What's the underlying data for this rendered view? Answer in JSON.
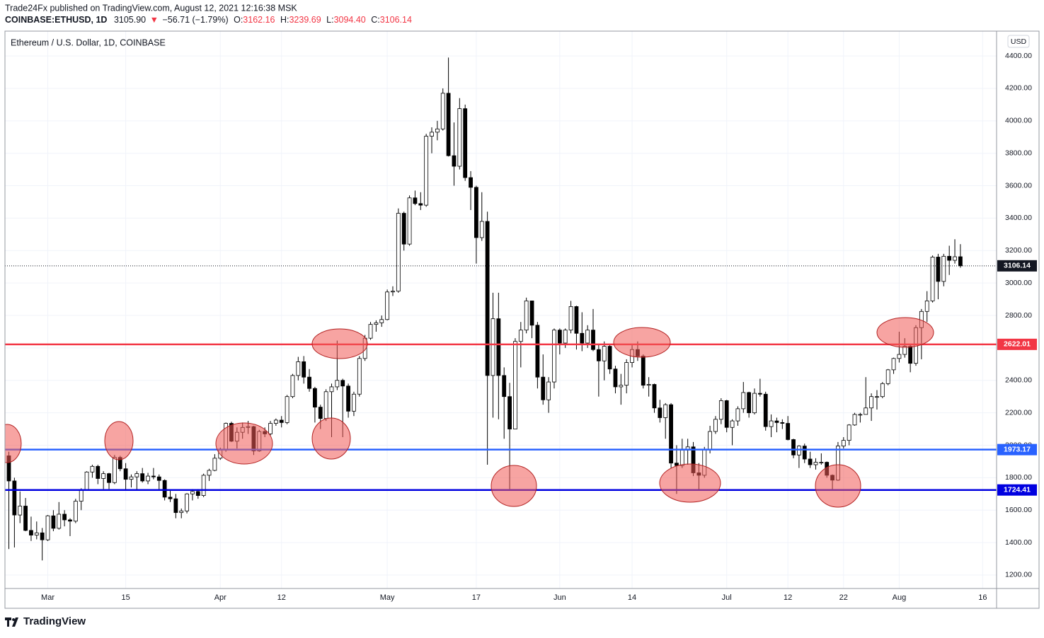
{
  "header": {
    "published": "Trade24Fx published on TradingView.com, August 12, 2021 12:16:38 MSK",
    "symbol": "COINBASE:ETHUSD, 1D",
    "price": "3105.90",
    "arrow": "▼",
    "change": "−56.71 (−1.79%)",
    "o_label": "O:",
    "open": "3162.16",
    "h_label": "H:",
    "high": "3239.69",
    "l_label": "L:",
    "low": "3094.40",
    "c_label": "C:",
    "close": "3106.14"
  },
  "footer": {
    "brand": "TradingView"
  },
  "chart_data": {
    "type": "candlestick",
    "title": "Ethereum / U.S. Dollar, 1D, COINBASE",
    "currency": "USD",
    "up_color": "#ffffff",
    "down_color": "#000000",
    "grid": true,
    "xlim": [
      -0.7,
      177.5
    ],
    "ylim": [
      1117,
      4553
    ],
    "xticks": [
      {
        "value": 7,
        "label": "Mar"
      },
      {
        "value": 21,
        "label": "15"
      },
      {
        "value": 38,
        "label": "Apr"
      },
      {
        "value": 49,
        "label": "12"
      },
      {
        "value": 68,
        "label": "May"
      },
      {
        "value": 84,
        "label": "17"
      },
      {
        "value": 99,
        "label": "Jun"
      },
      {
        "value": 112,
        "label": "14"
      },
      {
        "value": 129,
        "label": "Jul"
      },
      {
        "value": 140,
        "label": "12"
      },
      {
        "value": 150,
        "label": "22"
      },
      {
        "value": 160,
        "label": "Aug"
      },
      {
        "value": 175,
        "label": "16"
      }
    ],
    "yticks": [
      {
        "value": 1200,
        "label": "1200.00"
      },
      {
        "value": 1400,
        "label": "1400.00"
      },
      {
        "value": 1600,
        "label": "1600.00"
      },
      {
        "value": 1800,
        "label": "1800.00"
      },
      {
        "value": 2000,
        "label": "2000.00"
      },
      {
        "value": 2200,
        "label": "2200.00"
      },
      {
        "value": 2400,
        "label": "2400.00"
      },
      {
        "value": 2600,
        "label": "2600.00"
      },
      {
        "value": 2800,
        "label": "2800.00"
      },
      {
        "value": 3000,
        "label": "3000.00"
      },
      {
        "value": 3200,
        "label": "3200.00"
      },
      {
        "value": 3400,
        "label": "3400.00"
      },
      {
        "value": 3600,
        "label": "3600.00"
      },
      {
        "value": 3800,
        "label": "3800.00"
      },
      {
        "value": 4000,
        "label": "4000.00"
      },
      {
        "value": 4200,
        "label": "4200.00"
      },
      {
        "value": 4400,
        "label": "4400.00"
      }
    ],
    "hlines": [
      {
        "value": 2622.01,
        "color": "#f23645"
      },
      {
        "value": 1973.17,
        "color": "#2962ff"
      },
      {
        "value": 1724.41,
        "color": "#0000e0"
      }
    ],
    "last_price": 3106.14,
    "x": [
      0,
      1,
      2,
      3,
      4,
      5,
      6,
      7,
      8,
      9,
      10,
      11,
      12,
      13,
      14,
      15,
      16,
      17,
      18,
      19,
      20,
      21,
      22,
      23,
      24,
      25,
      26,
      27,
      28,
      29,
      30,
      31,
      32,
      33,
      34,
      35,
      36,
      37,
      38,
      39,
      40,
      41,
      42,
      43,
      44,
      45,
      46,
      47,
      48,
      49,
      50,
      51,
      52,
      53,
      54,
      55,
      56,
      57,
      58,
      59,
      60,
      61,
      62,
      63,
      64,
      65,
      66,
      67,
      68,
      69,
      70,
      71,
      72,
      73,
      74,
      75,
      76,
      77,
      78,
      79,
      80,
      81,
      82,
      83,
      84,
      85,
      86,
      87,
      88,
      89,
      90,
      91,
      92,
      93,
      94,
      95,
      96,
      97,
      98,
      99,
      100,
      101,
      102,
      103,
      104,
      105,
      106,
      107,
      108,
      109,
      110,
      111,
      112,
      113,
      114,
      115,
      116,
      117,
      118,
      119,
      120,
      121,
      122,
      123,
      124,
      125,
      126,
      127,
      128,
      129,
      130,
      131,
      132,
      133,
      134,
      135,
      136,
      137,
      138,
      139,
      140,
      141,
      142,
      143,
      144,
      145,
      146,
      147,
      148,
      149,
      150,
      151,
      152,
      153,
      154,
      155,
      156,
      157,
      158,
      159,
      160,
      161,
      162,
      163,
      164,
      165,
      166,
      167,
      168,
      169,
      170,
      171
    ],
    "ohlc": [
      [
        1935,
        1960,
        1360,
        1780
      ],
      [
        1780,
        1800,
        1370,
        1570
      ],
      [
        1570,
        1715,
        1520,
        1625
      ],
      [
        1625,
        1675,
        1470,
        1475
      ],
      [
        1475,
        1560,
        1410,
        1446
      ],
      [
        1446,
        1530,
        1420,
        1460
      ],
      [
        1460,
        1490,
        1290,
        1417
      ],
      [
        1417,
        1570,
        1410,
        1565
      ],
      [
        1565,
        1600,
        1470,
        1488
      ],
      [
        1488,
        1650,
        1480,
        1575
      ],
      [
        1575,
        1600,
        1500,
        1540
      ],
      [
        1540,
        1550,
        1440,
        1532
      ],
      [
        1532,
        1670,
        1520,
        1655
      ],
      [
        1655,
        1735,
        1600,
        1723
      ],
      [
        1723,
        1840,
        1720,
        1835
      ],
      [
        1835,
        1880,
        1800,
        1870
      ],
      [
        1870,
        1880,
        1760,
        1795
      ],
      [
        1795,
        1840,
        1730,
        1825
      ],
      [
        1825,
        1830,
        1730,
        1770
      ],
      [
        1770,
        1940,
        1760,
        1925
      ],
      [
        1925,
        1935,
        1840,
        1855
      ],
      [
        1855,
        1890,
        1720,
        1790
      ],
      [
        1790,
        1820,
        1740,
        1805
      ],
      [
        1805,
        1840,
        1720,
        1825
      ],
      [
        1825,
        1860,
        1770,
        1780
      ],
      [
        1780,
        1830,
        1760,
        1810
      ],
      [
        1810,
        1860,
        1790,
        1805
      ],
      [
        1805,
        1820,
        1720,
        1783
      ],
      [
        1783,
        1790,
        1660,
        1680
      ],
      [
        1680,
        1720,
        1650,
        1670
      ],
      [
        1670,
        1700,
        1550,
        1585
      ],
      [
        1585,
        1610,
        1550,
        1595
      ],
      [
        1595,
        1705,
        1580,
        1700
      ],
      [
        1700,
        1730,
        1660,
        1715
      ],
      [
        1715,
        1730,
        1670,
        1690
      ],
      [
        1690,
        1825,
        1680,
        1815
      ],
      [
        1815,
        1855,
        1780,
        1845
      ],
      [
        1845,
        1945,
        1840,
        1920
      ],
      [
        1920,
        1985,
        1910,
        1970
      ],
      [
        1970,
        2140,
        1960,
        2135
      ],
      [
        2135,
        2145,
        2020,
        2025
      ],
      [
        2025,
        2110,
        1980,
        2080
      ],
      [
        2080,
        2140,
        2040,
        2110
      ],
      [
        2110,
        2150,
        2070,
        2115
      ],
      [
        2115,
        2120,
        1940,
        1965
      ],
      [
        1965,
        2095,
        1960,
        2085
      ],
      [
        2085,
        2110,
        2050,
        2070
      ],
      [
        2070,
        2150,
        2060,
        2135
      ],
      [
        2135,
        2165,
        2120,
        2155
      ],
      [
        2155,
        2180,
        2110,
        2140
      ],
      [
        2140,
        2310,
        2130,
        2300
      ],
      [
        2300,
        2440,
        2290,
        2430
      ],
      [
        2430,
        2545,
        2400,
        2515
      ],
      [
        2515,
        2550,
        2380,
        2420
      ],
      [
        2420,
        2470,
        2330,
        2350
      ],
      [
        2350,
        2360,
        2140,
        2235
      ],
      [
        2235,
        2250,
        2100,
        2165
      ],
      [
        2165,
        2345,
        2150,
        2330
      ],
      [
        2330,
        2380,
        2050,
        2360
      ],
      [
        2360,
        2645,
        2340,
        2400
      ],
      [
        2400,
        2410,
        2050,
        2365
      ],
      [
        2365,
        2380,
        2170,
        2210
      ],
      [
        2210,
        2330,
        2180,
        2315
      ],
      [
        2315,
        2550,
        2300,
        2535
      ],
      [
        2535,
        2680,
        2520,
        2660
      ],
      [
        2660,
        2760,
        2650,
        2745
      ],
      [
        2745,
        2770,
        2700,
        2755
      ],
      [
        2755,
        2800,
        2730,
        2775
      ],
      [
        2775,
        2960,
        2770,
        2945
      ],
      [
        2945,
        2980,
        2920,
        2950
      ],
      [
        2950,
        3460,
        2940,
        3430
      ],
      [
        3430,
        3440,
        3200,
        3240
      ],
      [
        3240,
        3540,
        3230,
        3525
      ],
      [
        3525,
        3570,
        3480,
        3490
      ],
      [
        3490,
        3560,
        3450,
        3480
      ],
      [
        3480,
        3920,
        3470,
        3905
      ],
      [
        3905,
        3960,
        3800,
        3930
      ],
      [
        3930,
        4000,
        3880,
        3950
      ],
      [
        3950,
        4200,
        3940,
        4170
      ],
      [
        4170,
        4390,
        3780,
        3785
      ],
      [
        3785,
        3990,
        3600,
        3720
      ],
      [
        3720,
        4140,
        3700,
        4075
      ],
      [
        4075,
        4100,
        3630,
        3650
      ],
      [
        3650,
        3690,
        3450,
        3590
      ],
      [
        3590,
        3600,
        3120,
        3280
      ],
      [
        3280,
        3560,
        3260,
        3380
      ],
      [
        3380,
        3440,
        1880,
        2430
      ],
      [
        2430,
        2940,
        2170,
        2780
      ],
      [
        2780,
        2940,
        2160,
        2430
      ],
      [
        2430,
        2480,
        2040,
        2300
      ],
      [
        2300,
        2385,
        1730,
        2100
      ],
      [
        2100,
        2660,
        2100,
        2640
      ],
      [
        2640,
        2760,
        2480,
        2710
      ],
      [
        2710,
        2910,
        2690,
        2890
      ],
      [
        2890,
        2890,
        2660,
        2740
      ],
      [
        2740,
        2760,
        2350,
        2420
      ],
      [
        2420,
        2560,
        2250,
        2280
      ],
      [
        2280,
        2420,
        2200,
        2390
      ],
      [
        2390,
        2720,
        2350,
        2710
      ],
      [
        2710,
        2720,
        2560,
        2630
      ],
      [
        2630,
        2720,
        2600,
        2710
      ],
      [
        2710,
        2890,
        2690,
        2855
      ],
      [
        2855,
        2860,
        2590,
        2690
      ],
      [
        2690,
        2820,
        2580,
        2630
      ],
      [
        2630,
        2740,
        2600,
        2710
      ],
      [
        2710,
        2840,
        2580,
        2590
      ],
      [
        2590,
        2620,
        2300,
        2520
      ],
      [
        2520,
        2640,
        2400,
        2610
      ],
      [
        2610,
        2620,
        2440,
        2470
      ],
      [
        2470,
        2490,
        2320,
        2360
      ],
      [
        2360,
        2440,
        2250,
        2370
      ],
      [
        2370,
        2530,
        2320,
        2510
      ],
      [
        2510,
        2620,
        2480,
        2590
      ],
      [
        2590,
        2640,
        2520,
        2550
      ],
      [
        2550,
        2560,
        2350,
        2370
      ],
      [
        2370,
        2420,
        2300,
        2375
      ],
      [
        2375,
        2380,
        2200,
        2230
      ],
      [
        2230,
        2280,
        2140,
        2170
      ],
      [
        2170,
        2260,
        2040,
        2250
      ],
      [
        2250,
        2260,
        1860,
        1890
      ],
      [
        1890,
        2000,
        1700,
        1875
      ],
      [
        1875,
        2040,
        1860,
        1970
      ],
      [
        1970,
        2040,
        1880,
        1990
      ],
      [
        1990,
        2020,
        1810,
        1830
      ],
      [
        1830,
        1890,
        1720,
        1815
      ],
      [
        1815,
        1990,
        1800,
        1975
      ],
      [
        1975,
        2120,
        1950,
        2085
      ],
      [
        2085,
        2180,
        2070,
        2160
      ],
      [
        2160,
        2290,
        2130,
        2275
      ],
      [
        2275,
        2280,
        2080,
        2110
      ],
      [
        2110,
        2160,
        2000,
        2150
      ],
      [
        2150,
        2240,
        2120,
        2225
      ],
      [
        2225,
        2390,
        2200,
        2325
      ],
      [
        2325,
        2330,
        2170,
        2200
      ],
      [
        2200,
        2350,
        2190,
        2320
      ],
      [
        2320,
        2410,
        2300,
        2315
      ],
      [
        2315,
        2330,
        2090,
        2115
      ],
      [
        2115,
        2190,
        2050,
        2150
      ],
      [
        2150,
        2170,
        2080,
        2140
      ],
      [
        2140,
        2160,
        2100,
        2135
      ],
      [
        2135,
        2180,
        2030,
        2035
      ],
      [
        2035,
        2040,
        1920,
        1940
      ],
      [
        1940,
        2000,
        1860,
        1995
      ],
      [
        1995,
        2010,
        1890,
        1915
      ],
      [
        1915,
        1960,
        1860,
        1880
      ],
      [
        1880,
        1920,
        1850,
        1895
      ],
      [
        1895,
        1950,
        1880,
        1895
      ],
      [
        1895,
        1900,
        1800,
        1815
      ],
      [
        1815,
        1820,
        1720,
        1785
      ],
      [
        1785,
        2020,
        1780,
        1995
      ],
      [
        1995,
        2050,
        1980,
        2030
      ],
      [
        2030,
        2130,
        2000,
        2125
      ],
      [
        2125,
        2200,
        2120,
        2190
      ],
      [
        2190,
        2200,
        2140,
        2190
      ],
      [
        2190,
        2420,
        2190,
        2230
      ],
      [
        2230,
        2320,
        2150,
        2300
      ],
      [
        2300,
        2340,
        2220,
        2300
      ],
      [
        2300,
        2390,
        2290,
        2380
      ],
      [
        2380,
        2470,
        2370,
        2465
      ],
      [
        2465,
        2540,
        2440,
        2535
      ],
      [
        2535,
        2700,
        2510,
        2560
      ],
      [
        2560,
        2660,
        2540,
        2610
      ],
      [
        2610,
        2620,
        2450,
        2505
      ],
      [
        2505,
        2740,
        2490,
        2725
      ],
      [
        2725,
        2840,
        2530,
        2825
      ],
      [
        2825,
        2950,
        2760,
        2890
      ],
      [
        2890,
        3170,
        2880,
        3160
      ],
      [
        3160,
        3180,
        2900,
        3010
      ],
      [
        3010,
        3180,
        2980,
        3165
      ],
      [
        3165,
        3230,
        3050,
        3140
      ],
      [
        3140,
        3270,
        3120,
        3162
      ],
      [
        3162.16,
        3239.69,
        3094.4,
        3106.14
      ]
    ]
  }
}
